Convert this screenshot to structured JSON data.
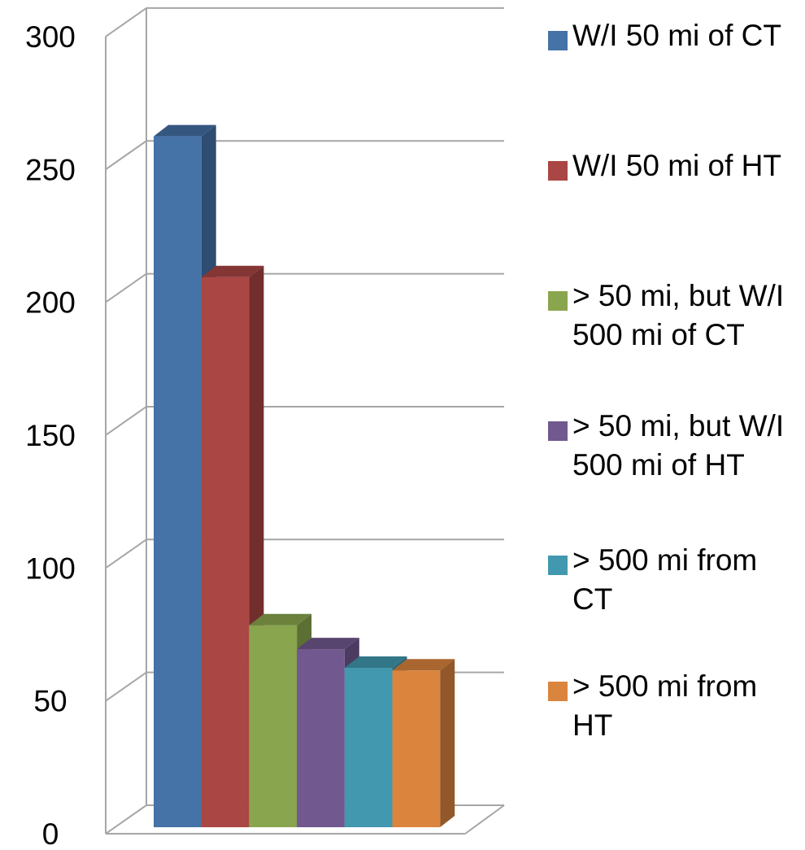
{
  "chart_data": {
    "type": "bar",
    "categories": [
      ""
    ],
    "series": [
      {
        "name": "W/I 50 mi of CT",
        "values": [
          260
        ],
        "color": "#4572A7",
        "side_color": "#2E4D70",
        "top_color": "#35577F"
      },
      {
        "name": "W/I 50 mi of HT",
        "values": [
          207
        ],
        "color": "#AA4643",
        "side_color": "#722E2C",
        "top_color": "#843634"
      },
      {
        "name": "> 50 mi, but W/I 500 mi of CT",
        "values": [
          76
        ],
        "color": "#89A54E",
        "side_color": "#5C6F34",
        "top_color": "#6B813C"
      },
      {
        "name": "> 50 mi, but W/I 500 mi of HT",
        "values": [
          67
        ],
        "color": "#71588F",
        "side_color": "#4B3B60",
        "top_color": "#57456F"
      },
      {
        "name": "> 500 mi from CT",
        "values": [
          60
        ],
        "color": "#4198AF",
        "side_color": "#2B6675",
        "top_color": "#327688"
      },
      {
        "name": "> 500 mi from HT",
        "values": [
          59
        ],
        "color": "#DB843D",
        "side_color": "#935829",
        "top_color": "#AA6630"
      }
    ],
    "yticks": [
      "0",
      "50",
      "100",
      "150",
      "200",
      "250",
      "300"
    ],
    "ylim": [
      0,
      300
    ],
    "title": "",
    "xlabel": "",
    "ylabel": "",
    "grid": true,
    "legend_position": "right",
    "three_d": true
  }
}
